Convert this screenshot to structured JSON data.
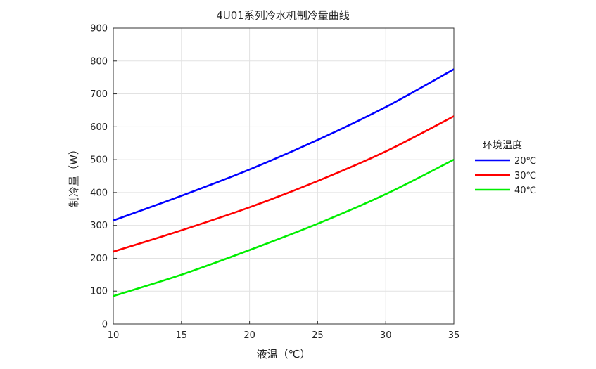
{
  "chart_data": {
    "type": "line",
    "title": "4U01系列冷水机制冷量曲线",
    "xlabel": "液温（℃）",
    "ylabel": "制冷量（W）",
    "xlim": [
      10,
      35
    ],
    "ylim": [
      0,
      900
    ],
    "xticks": [
      10,
      15,
      20,
      25,
      30,
      35
    ],
    "yticks": [
      0,
      100,
      200,
      300,
      400,
      500,
      600,
      700,
      800,
      900
    ],
    "grid": true,
    "legend": {
      "title": "环境温度",
      "placement": "right"
    },
    "x": [
      10,
      15,
      20,
      25,
      30,
      35
    ],
    "series": [
      {
        "name": "20℃",
        "color": "#0000ff",
        "values": [
          315,
          390,
          470,
          560,
          660,
          775
        ]
      },
      {
        "name": "30℃",
        "color": "#ff0000",
        "values": [
          220,
          285,
          355,
          435,
          525,
          632
        ]
      },
      {
        "name": "40℃",
        "color": "#00ee00",
        "values": [
          85,
          150,
          225,
          305,
          395,
          500
        ]
      }
    ]
  }
}
